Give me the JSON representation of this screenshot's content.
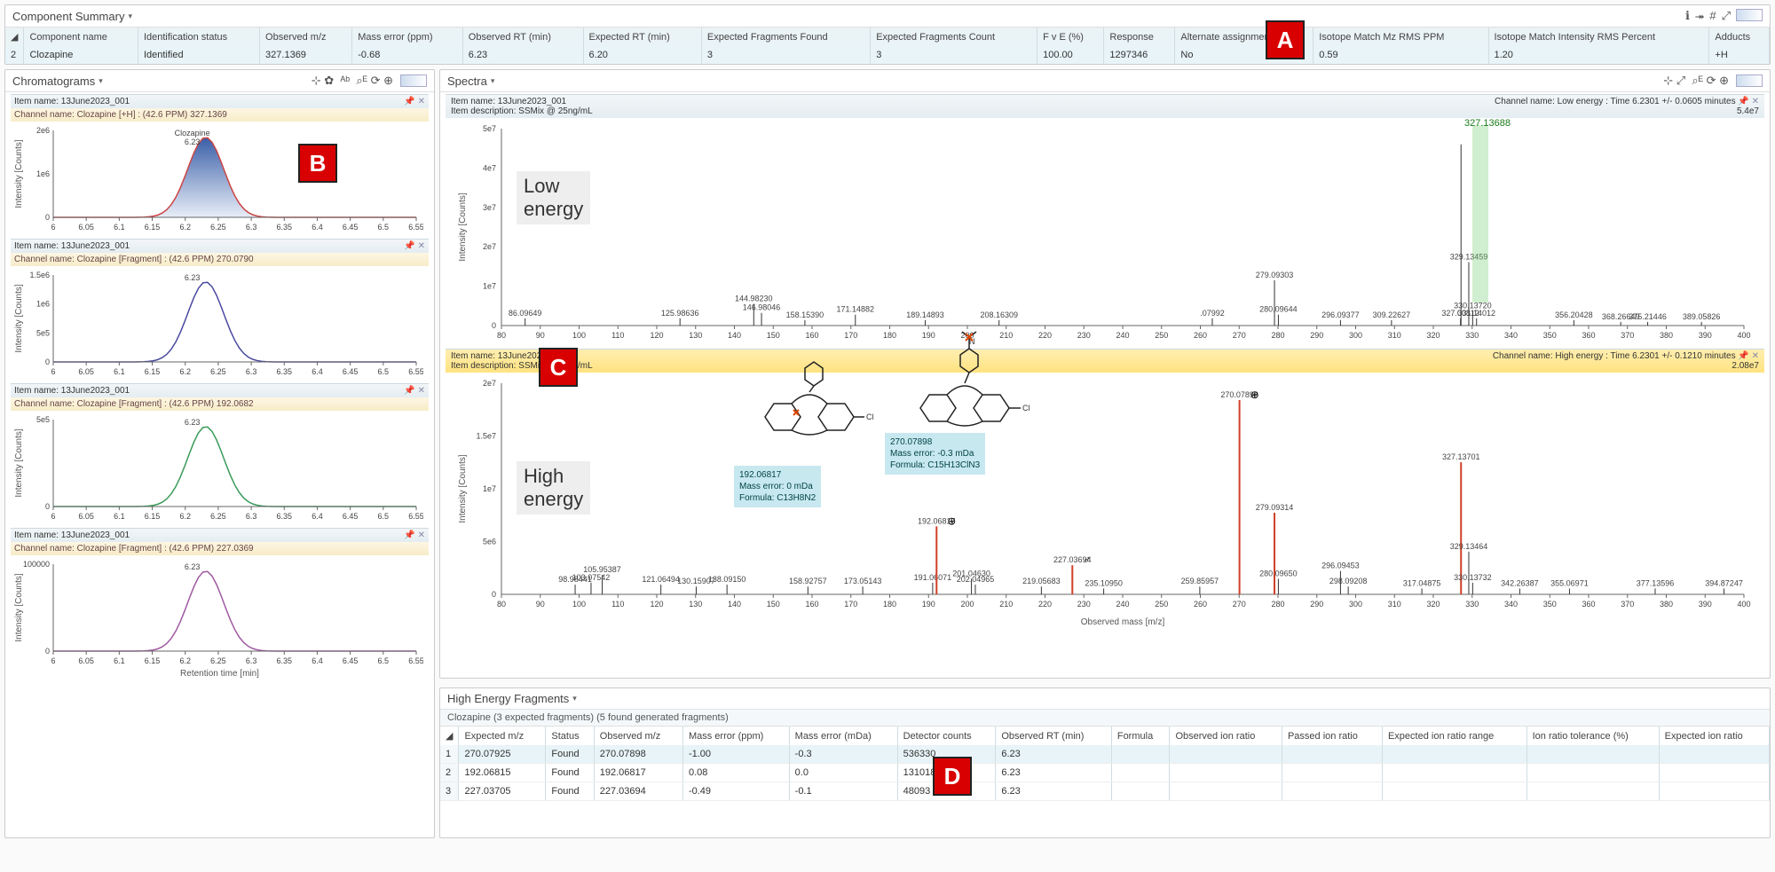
{
  "summary": {
    "title": "Component Summary",
    "columns": [
      "Component name",
      "Identification status",
      "Observed m/z",
      "Mass error (ppm)",
      "Observed RT (min)",
      "Expected RT (min)",
      "Expected Fragments Found",
      "Expected Fragments Count",
      "F v E (%)",
      "Response",
      "Alternate assignments",
      "Isotope Match Mz RMS PPM",
      "Isotope Match Intensity RMS Percent",
      "Adducts"
    ],
    "row_index": "2",
    "row": [
      "Clozapine",
      "Identified",
      "327.1369",
      "-0.68",
      "6.23",
      "6.20",
      "3",
      "3",
      "100.00",
      "1297346",
      "No",
      "0.59",
      "1.20",
      "+H"
    ]
  },
  "chromatograms": {
    "title": "Chromatograms",
    "xlabel": "Retention time [min]",
    "ylabel": "Intensity [Counts]",
    "xticks": [
      "6",
      "6.05",
      "6.1",
      "6.15",
      "6.2",
      "6.25",
      "6.3",
      "6.35",
      "6.4",
      "6.45",
      "6.5",
      "6.55"
    ],
    "charts": [
      {
        "item": "Item name: 13June2023_001",
        "channel": "Channel name: Clozapine [+H] : (42.6 PPM) 327.1369",
        "peak_label": "Clozapine",
        "peak_rt": "6.23",
        "ymax": "2e6",
        "ymid": "1e6",
        "color": "#3b5fa8",
        "fill": true
      },
      {
        "item": "Item name: 13June2023_001",
        "channel": "Channel name: Clozapine [Fragment] : (42.6 PPM) 270.0790",
        "peak_rt": "6.23",
        "ymax": "1.5e6",
        "ymid": "1e6",
        "ymid2": "5e5",
        "color": "#4a4aa0",
        "fill": false
      },
      {
        "item": "Item name: 13June2023_001",
        "channel": "Channel name: Clozapine [Fragment] : (42.6 PPM) 192.0682",
        "peak_rt": "6.23",
        "ymax": "5e5",
        "color": "#3a9a5a",
        "fill": false
      },
      {
        "item": "Item name: 13June2023_001",
        "channel": "Channel name: Clozapine [Fragment] : (42.6 PPM) 227.0369",
        "peak_rt": "6.23",
        "ymax": "100000",
        "color": "#a05aa0",
        "fill": false
      }
    ]
  },
  "spectra": {
    "title": "Spectra",
    "ylabel": "Intensity [Counts]",
    "xlabel": "Observed mass [m/z]",
    "low": {
      "item": "Item name: 13June2023_001",
      "desc": "Item description: SSMix @ 25ng/mL",
      "channel": "Channel name: Low energy : Time 6.2301 +/- 0.0605 minutes",
      "ymax_label": "5.4e7",
      "overlay": "Low\nenergy",
      "yticks": [
        "5e7",
        "4e7",
        "3e7",
        "2e7",
        "1e7",
        "0"
      ],
      "xticks": [
        "80",
        "90",
        "100",
        "110",
        "120",
        "130",
        "140",
        "150",
        "160",
        "170",
        "180",
        "190",
        "200",
        "210",
        "220",
        "230",
        "240",
        "250",
        "260",
        "270",
        "280",
        "290",
        "300",
        "310",
        "320",
        "330",
        "340",
        "350",
        "360",
        "370",
        "380",
        "390",
        "400"
      ],
      "main_peak_label": "327.13688",
      "peaks": [
        {
          "mz": 86.09649,
          "i": 0.04,
          "lab": "86.09649"
        },
        {
          "mz": 125.98636,
          "i": 0.04,
          "lab": "125.98636"
        },
        {
          "mz": 144.9823,
          "i": 0.12,
          "lab": "144.98230"
        },
        {
          "mz": 146.98046,
          "i": 0.07,
          "lab": "146.98046"
        },
        {
          "mz": 158.1539,
          "i": 0.03,
          "lab": "158.15390"
        },
        {
          "mz": 171.14882,
          "i": 0.06,
          "lab": "171.14882"
        },
        {
          "mz": 189.14893,
          "i": 0.03,
          "lab": "189.14893"
        },
        {
          "mz": 208.16309,
          "i": 0.03,
          "lab": "208.16309"
        },
        {
          "mz": 263.07992,
          "i": 0.04,
          "lab": ".07992"
        },
        {
          "mz": 279.09303,
          "i": 0.25,
          "lab": "279.09303"
        },
        {
          "mz": 280.09644,
          "i": 0.06,
          "lab": "280.09644"
        },
        {
          "mz": 296.09377,
          "i": 0.03,
          "lab": "296.09377"
        },
        {
          "mz": 309.22627,
          "i": 0.03,
          "lab": "309.22627"
        },
        {
          "mz": 327.00812,
          "i": 0.04,
          "lab": "327.00812"
        },
        {
          "mz": 327.13688,
          "i": 1.0,
          "lab": ""
        },
        {
          "mz": 329.13459,
          "i": 0.35,
          "lab": "329.13459"
        },
        {
          "mz": 330.1372,
          "i": 0.08,
          "lab": "330.13720"
        },
        {
          "mz": 331.14012,
          "i": 0.04,
          "lab": "331.14012"
        },
        {
          "mz": 356.20428,
          "i": 0.03,
          "lab": "356.20428"
        },
        {
          "mz": 368.26649,
          "i": 0.02,
          "lab": "368.26649"
        },
        {
          "mz": 375.21446,
          "i": 0.02,
          "lab": "375.21446"
        },
        {
          "mz": 389.05826,
          "i": 0.02,
          "lab": "389.05826"
        }
      ]
    },
    "high": {
      "item": "Item name: 13June2023_001",
      "desc": "Item description: SSMix @ 25ng/mL",
      "channel": "Channel name: High energy : Time 6.2301 +/- 0.1210 minutes",
      "ymax_label": "2.08e7",
      "overlay": "High\nenergy",
      "yticks": [
        "2e7",
        "1.5e7",
        "1e7",
        "5e6",
        "0"
      ],
      "structure1": {
        "mz": "192.06817",
        "err": "Mass error: 0 mDa",
        "formula": "Formula: C13H8N2"
      },
      "structure2": {
        "mz": "270.07898",
        "err": "Mass error: -0.3 mDa",
        "formula": "Formula: C15H13ClN3"
      },
      "peaks": [
        {
          "mz": 98.98441,
          "i": 0.05,
          "lab": "98.98441"
        },
        {
          "mz": 103.07542,
          "i": 0.06,
          "lab": "103.07542"
        },
        {
          "mz": 105.95387,
          "i": 0.1,
          "lab": "105.95387"
        },
        {
          "mz": 121.06494,
          "i": 0.05,
          "lab": "121.06494"
        },
        {
          "mz": 130.15907,
          "i": 0.04,
          "lab": "130.15907"
        },
        {
          "mz": 138.0915,
          "i": 0.05,
          "lab": "138.09150"
        },
        {
          "mz": 158.92757,
          "i": 0.04,
          "lab": "158.92757"
        },
        {
          "mz": 173.05143,
          "i": 0.04,
          "lab": "173.05143"
        },
        {
          "mz": 191.06071,
          "i": 0.06,
          "lab": "191.06071"
        },
        {
          "mz": 192.06817,
          "i": 0.35,
          "lab": "192.06817",
          "red": true,
          "mark": "⊕"
        },
        {
          "mz": 201.0463,
          "i": 0.08,
          "lab": "201.04630"
        },
        {
          "mz": 202.04965,
          "i": 0.05,
          "lab": "202.04965"
        },
        {
          "mz": 219.05683,
          "i": 0.04,
          "lab": "219.05683"
        },
        {
          "mz": 227.03694,
          "i": 0.15,
          "lab": "227.03694",
          "red": true,
          "mark": "♂"
        },
        {
          "mz": 235.1095,
          "i": 0.03,
          "lab": "235.10950"
        },
        {
          "mz": 259.85957,
          "i": 0.04,
          "lab": "259.85957"
        },
        {
          "mz": 270.07898,
          "i": 1.0,
          "lab": "270.07898",
          "red": true,
          "mark": "⊕"
        },
        {
          "mz": 279.09314,
          "i": 0.42,
          "lab": "279.09314",
          "red": true
        },
        {
          "mz": 280.0965,
          "i": 0.08,
          "lab": "280.09650"
        },
        {
          "mz": 296.09453,
          "i": 0.12,
          "lab": "296.09453"
        },
        {
          "mz": 298.09208,
          "i": 0.04,
          "lab": "298.09208"
        },
        {
          "mz": 317.04875,
          "i": 0.03,
          "lab": "317.04875"
        },
        {
          "mz": 327.13701,
          "i": 0.68,
          "lab": "327.13701",
          "red": true
        },
        {
          "mz": 329.13464,
          "i": 0.22,
          "lab": "329.13464"
        },
        {
          "mz": 330.13732,
          "i": 0.06,
          "lab": "330.13732"
        },
        {
          "mz": 342.26387,
          "i": 0.03,
          "lab": "342.26387"
        },
        {
          "mz": 355.06971,
          "i": 0.03,
          "lab": "355.06971"
        },
        {
          "mz": 377.13596,
          "i": 0.03,
          "lab": "377.13596"
        },
        {
          "mz": 394.87247,
          "i": 0.03,
          "lab": "394.87247"
        }
      ]
    }
  },
  "fragments": {
    "title": "High Energy Fragments",
    "subtitle": "Clozapine (3 expected fragments) (5 found generated fragments)",
    "columns": [
      "Expected m/z",
      "Status",
      "Observed m/z",
      "Mass error (ppm)",
      "Mass error (mDa)",
      "Detector counts",
      "Observed RT (min)",
      "Formula",
      "Observed ion ratio",
      "Passed ion ratio",
      "Expected ion ratio range",
      "Ion ratio tolerance (%)",
      "Expected ion ratio"
    ],
    "rows": [
      [
        "270.07925",
        "Found",
        "270.07898",
        "-1.00",
        "-0.3",
        "536330",
        "6.23",
        "",
        "",
        "",
        "",
        "",
        ""
      ],
      [
        "192.06815",
        "Found",
        "192.06817",
        "0.08",
        "0.0",
        "131018",
        "6.23",
        "",
        "",
        "",
        "",
        "",
        ""
      ],
      [
        "227.03705",
        "Found",
        "227.03694",
        "-0.49",
        "-0.1",
        "48093",
        "6.23",
        "",
        "",
        "",
        "",
        "",
        ""
      ]
    ]
  },
  "annotations": {
    "A": "A",
    "B": "B",
    "C": "C",
    "D": "D"
  },
  "icons": {
    "info": "ℹ",
    "share": "⯮",
    "hash": "#",
    "expand": "⤢"
  }
}
